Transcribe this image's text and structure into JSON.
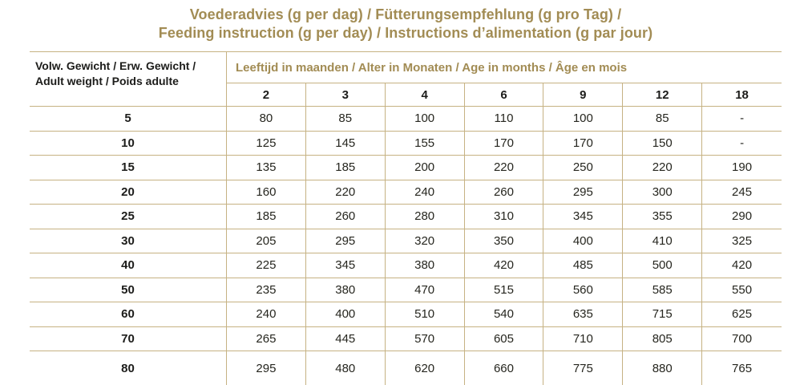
{
  "title": {
    "line1": "Voederadvies (g per dag) / Fütterungsempfehlung (g pro Tag) /",
    "line2": "Feeding instruction (g per day) / Instructions d’alimentation (g par jour)"
  },
  "table": {
    "weight_header_line1": "Volw. Gewicht / Erw. Gewicht /",
    "weight_header_line2": "Adult weight / Poids adulte",
    "age_header": "Leeftijd in maanden / Alter in Monaten / Age in months / Âge en mois",
    "age_columns": [
      "2",
      "3",
      "4",
      "6",
      "9",
      "12",
      "18"
    ],
    "rows": [
      {
        "weight": "5",
        "values": [
          "80",
          "85",
          "100",
          "110",
          "100",
          "85",
          "-"
        ]
      },
      {
        "weight": "10",
        "values": [
          "125",
          "145",
          "155",
          "170",
          "170",
          "150",
          "-"
        ]
      },
      {
        "weight": "15",
        "values": [
          "135",
          "185",
          "200",
          "220",
          "250",
          "220",
          "190"
        ]
      },
      {
        "weight": "20",
        "values": [
          "160",
          "220",
          "240",
          "260",
          "295",
          "300",
          "245"
        ]
      },
      {
        "weight": "25",
        "values": [
          "185",
          "260",
          "280",
          "310",
          "345",
          "355",
          "290"
        ]
      },
      {
        "weight": "30",
        "values": [
          "205",
          "295",
          "320",
          "350",
          "400",
          "410",
          "325"
        ]
      },
      {
        "weight": "40",
        "values": [
          "225",
          "345",
          "380",
          "420",
          "485",
          "500",
          "420"
        ]
      },
      {
        "weight": "50",
        "values": [
          "235",
          "380",
          "470",
          "515",
          "560",
          "585",
          "550"
        ]
      },
      {
        "weight": "60",
        "values": [
          "240",
          "400",
          "510",
          "540",
          "635",
          "715",
          "625"
        ]
      },
      {
        "weight": "70",
        "values": [
          "265",
          "445",
          "570",
          "605",
          "710",
          "805",
          "700"
        ]
      },
      {
        "weight": "80",
        "values": [
          "295",
          "480",
          "620",
          "660",
          "775",
          "880",
          "765"
        ]
      }
    ]
  },
  "colors": {
    "gold_text": "#a28c54",
    "grid_line": "#c6b283",
    "heading_text": "#1c1c1a",
    "value_text": "#26261f"
  }
}
